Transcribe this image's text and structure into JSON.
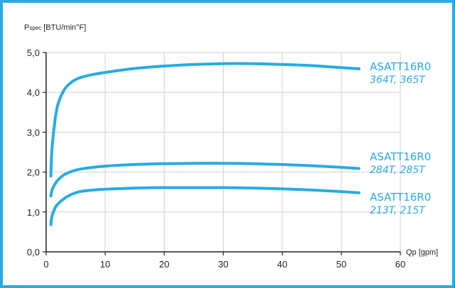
{
  "chart_data": {
    "type": "line",
    "ylabel_main": "P",
    "ylabel_sub": "spec",
    "ylabel_unit": " [BTU/min°F]",
    "xlabel": "Qp [gpm]",
    "xlim": [
      0,
      60
    ],
    "ylim": [
      0,
      5
    ],
    "xticks": [
      0,
      10,
      20,
      30,
      40,
      50,
      60
    ],
    "yticks": [
      "0,0",
      "1,0",
      "2,0",
      "3,0",
      "4,0",
      "5,0"
    ],
    "grid": true,
    "line_color": "#29abe2",
    "series": [
      {
        "model": "ASATT16R0",
        "frames": "364T, 365T",
        "points": [
          [
            0.8,
            1.9
          ],
          [
            1.0,
            2.6
          ],
          [
            1.5,
            3.3
          ],
          [
            2.0,
            3.7
          ],
          [
            3.0,
            4.05
          ],
          [
            4.0,
            4.22
          ],
          [
            5.0,
            4.32
          ],
          [
            6.0,
            4.38
          ],
          [
            8.0,
            4.45
          ],
          [
            10.0,
            4.5
          ],
          [
            15.0,
            4.6
          ],
          [
            20.0,
            4.66
          ],
          [
            25.0,
            4.7
          ],
          [
            30.0,
            4.72
          ],
          [
            35.0,
            4.72
          ],
          [
            40.0,
            4.7
          ],
          [
            45.0,
            4.67
          ],
          [
            50.0,
            4.62
          ],
          [
            53.0,
            4.59
          ]
        ]
      },
      {
        "model": "ASATT16R0",
        "frames": "284T, 285T",
        "points": [
          [
            0.8,
            1.4
          ],
          [
            1.0,
            1.55
          ],
          [
            1.5,
            1.7
          ],
          [
            2.0,
            1.8
          ],
          [
            3.0,
            1.93
          ],
          [
            4.0,
            2.0
          ],
          [
            5.0,
            2.05
          ],
          [
            6.0,
            2.08
          ],
          [
            8.0,
            2.12
          ],
          [
            10.0,
            2.15
          ],
          [
            15.0,
            2.19
          ],
          [
            20.0,
            2.21
          ],
          [
            25.0,
            2.22
          ],
          [
            30.0,
            2.22
          ],
          [
            35.0,
            2.21
          ],
          [
            40.0,
            2.19
          ],
          [
            45.0,
            2.16
          ],
          [
            50.0,
            2.12
          ],
          [
            53.0,
            2.09
          ]
        ]
      },
      {
        "model": "ASATT16R0",
        "frames": "213T, 215T",
        "points": [
          [
            0.8,
            0.68
          ],
          [
            1.0,
            0.9
          ],
          [
            1.5,
            1.1
          ],
          [
            2.0,
            1.2
          ],
          [
            3.0,
            1.33
          ],
          [
            4.0,
            1.42
          ],
          [
            5.0,
            1.48
          ],
          [
            6.0,
            1.52
          ],
          [
            8.0,
            1.55
          ],
          [
            10.0,
            1.57
          ],
          [
            15.0,
            1.6
          ],
          [
            20.0,
            1.61
          ],
          [
            25.0,
            1.61
          ],
          [
            30.0,
            1.61
          ],
          [
            35.0,
            1.6
          ],
          [
            40.0,
            1.58
          ],
          [
            45.0,
            1.55
          ],
          [
            50.0,
            1.51
          ],
          [
            53.0,
            1.48
          ]
        ]
      }
    ]
  }
}
